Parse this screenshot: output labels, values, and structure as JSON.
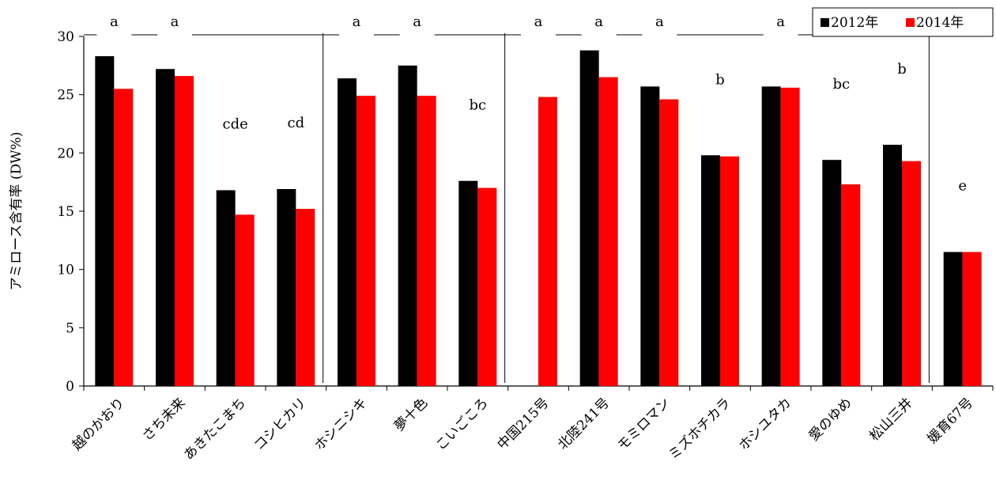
{
  "chart_data": {
    "type": "bar",
    "ylabel": "アミロース含有率 (DW%)",
    "xlabel": "",
    "ylim": [
      0,
      30
    ],
    "yticks": [
      0,
      5,
      10,
      15,
      20,
      25,
      30
    ],
    "grid": false,
    "legend_position": "top-right",
    "categories": [
      "越のかおり",
      "さち未来",
      "あきたこまち",
      "コシヒカリ",
      "ホシニシキ",
      "夢十色",
      "こいごころ",
      "中国215号",
      "北陸241号",
      "モミロマン",
      "ミズホチカラ",
      "ホシユタカ",
      "愛のゆめ",
      "松山三井",
      "媛育67号"
    ],
    "series": [
      {
        "name": "2012年",
        "color": "#000000",
        "values": [
          28.3,
          27.2,
          16.8,
          16.9,
          26.4,
          27.5,
          17.6,
          null,
          28.8,
          25.7,
          19.8,
          25.7,
          19.4,
          20.7,
          11.5
        ]
      },
      {
        "name": "2014年",
        "color": "#ff0000",
        "values": [
          25.5,
          26.6,
          14.7,
          15.2,
          24.9,
          24.9,
          17.0,
          24.8,
          26.5,
          24.6,
          19.7,
          25.6,
          17.3,
          19.3,
          11.5
        ]
      }
    ],
    "significance_labels": [
      "a",
      "a",
      "cde",
      "cd",
      "a",
      "a",
      "bc",
      "a",
      "a",
      "a",
      "b",
      "a",
      "bc",
      "b",
      "e"
    ]
  }
}
